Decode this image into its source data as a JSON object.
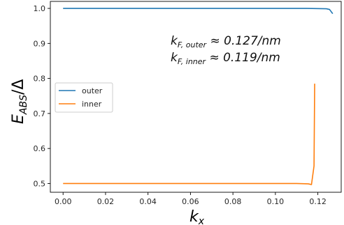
{
  "chart_data": {
    "type": "line",
    "xlabel": "k",
    "xlabel_sub": "x",
    "ylabel": "E",
    "ylabel_sub": "ABS",
    "ylabel_tail": "/Δ",
    "xlim": [
      -0.006,
      0.131
    ],
    "ylim": [
      0.475,
      1.02
    ],
    "xticks": [
      0.0,
      0.02,
      0.04,
      0.06,
      0.08,
      0.1,
      0.12
    ],
    "xtick_labels": [
      "0.00",
      "0.02",
      "0.04",
      "0.06",
      "0.08",
      "0.10",
      "0.12"
    ],
    "yticks": [
      0.5,
      0.6,
      0.7,
      0.8,
      0.9,
      1.0
    ],
    "ytick_labels": [
      "0.5",
      "0.6",
      "0.7",
      "0.8",
      "0.9",
      "1.0"
    ],
    "legend_position": "center-left",
    "grid": false,
    "series": [
      {
        "name": "outer",
        "color": "#1f77b4",
        "x": [
          0.0,
          0.02,
          0.04,
          0.06,
          0.08,
          0.1,
          0.115,
          0.124,
          0.1255,
          0.127
        ],
        "y": [
          1.0,
          1.0,
          1.0,
          1.0,
          1.0,
          1.0,
          1.0,
          0.999,
          0.997,
          0.985
        ]
      },
      {
        "name": "inner",
        "color": "#ff7f0e",
        "x": [
          0.0,
          0.02,
          0.04,
          0.06,
          0.08,
          0.1,
          0.11,
          0.1155,
          0.117,
          0.1182,
          0.1185
        ],
        "y": [
          0.5,
          0.5,
          0.5,
          0.5,
          0.5,
          0.5,
          0.5,
          0.499,
          0.497,
          0.55,
          0.785
        ]
      }
    ],
    "annotations": [
      {
        "main": "k",
        "sub": "F, outer",
        "rest": " ≈ 0.127/nm"
      },
      {
        "main": "k",
        "sub": "F, inner",
        "rest": " ≈ 0.119/nm"
      }
    ]
  }
}
